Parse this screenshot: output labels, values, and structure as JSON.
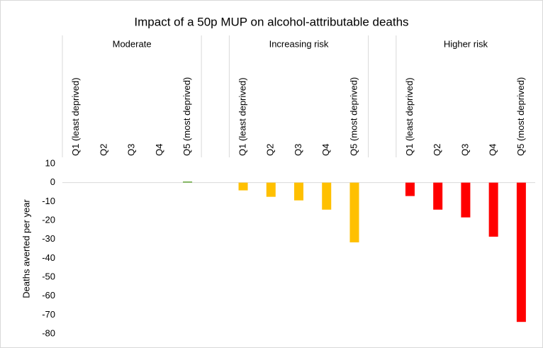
{
  "chart_data": {
    "type": "grouped-bar",
    "title": "Impact of a 50p MUP on alcohol-attributable deaths",
    "y_label": "Deaths averted per year",
    "groups": [
      {
        "name": "Moderate",
        "color": "#70ad47",
        "categories": [
          "Q1 (least deprived)",
          "Q2",
          "Q3",
          "Q4",
          "Q5 (most deprived)"
        ],
        "values": [
          0,
          0,
          0,
          0,
          0.6
        ]
      },
      {
        "name": "Increasing risk",
        "color": "#ffc000",
        "categories": [
          "Q1 (least deprived)",
          "Q2",
          "Q3",
          "Q4",
          "Q5 (most deprived)"
        ],
        "values": [
          -4.1,
          -7.5,
          -9.4,
          -14.3,
          -31.6
        ]
      },
      {
        "name": "Higher risk",
        "color": "#ff0000",
        "categories": [
          "Q1 (least deprived)",
          "Q2",
          "Q3",
          "Q4",
          "Q5 (most deprived)"
        ],
        "values": [
          -7.1,
          -14.3,
          -18.4,
          -28.6,
          -73.7
        ]
      }
    ],
    "ylim": [
      10,
      -80
    ],
    "yticks": [
      10,
      0,
      -10,
      -20,
      -30,
      -40,
      -50,
      -60,
      -70,
      -80
    ]
  }
}
